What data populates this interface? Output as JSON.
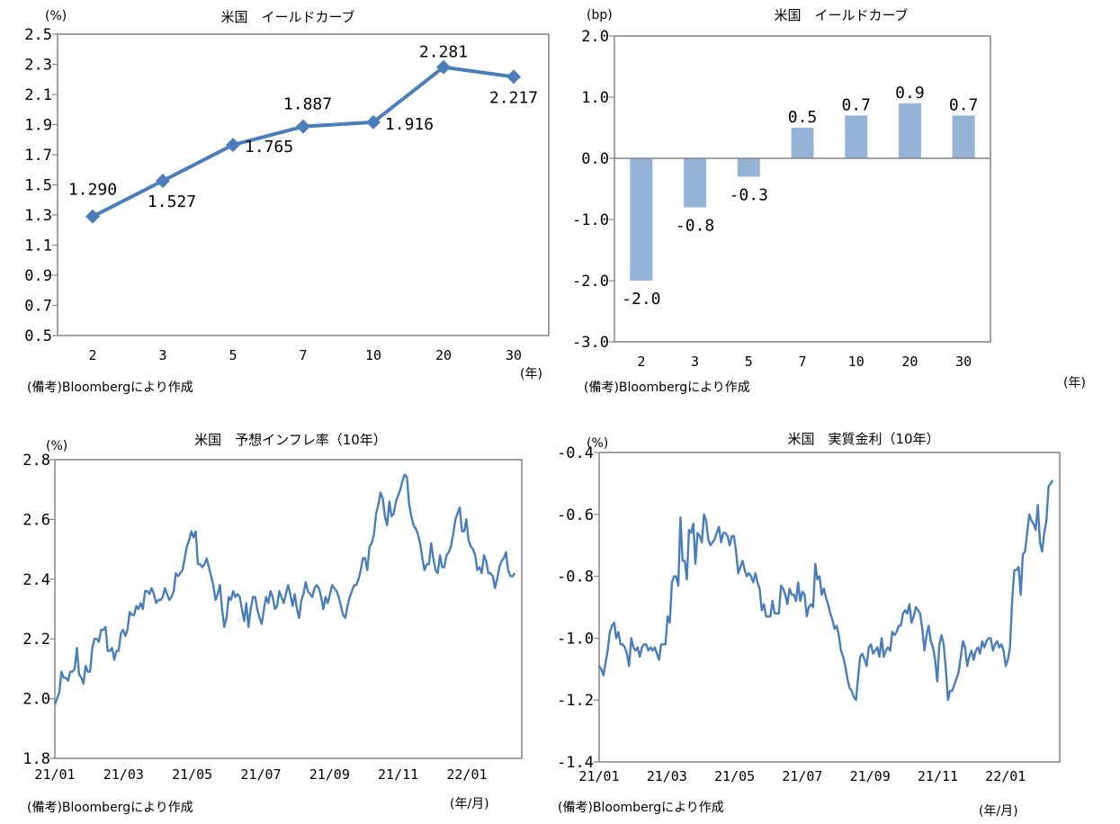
{
  "colors": {
    "line": "#4a7ebb",
    "bar": "#95b3d7",
    "axis": "#868686",
    "frame": "#404040"
  },
  "source_note": "(備考)Bloombergにより作成",
  "chart_data": [
    {
      "id": "yield-curve",
      "type": "line",
      "title": "米国　イールドカーブ",
      "ylabel": "(%)",
      "xlabel": "(年)",
      "categories": [
        "2",
        "3",
        "5",
        "7",
        "10",
        "20",
        "30"
      ],
      "values": [
        1.29,
        1.527,
        1.765,
        1.887,
        1.916,
        2.281,
        2.217
      ],
      "data_labels": [
        "1.290",
        "1.527",
        "1.765",
        "1.887",
        "1.916",
        "2.281",
        "2.217"
      ],
      "ylim": [
        0.5,
        2.5
      ],
      "yticks": [
        "2.5",
        "2.3",
        "2.1",
        "1.9",
        "1.7",
        "1.5",
        "1.3",
        "1.1",
        "0.9",
        "0.7",
        "0.5"
      ],
      "marker": "diamond",
      "grid": false
    },
    {
      "id": "yield-change",
      "type": "bar",
      "title": "米国　イールドカーブ",
      "ylabel": "(bp)",
      "xlabel": "(年)",
      "categories": [
        "2",
        "3",
        "5",
        "7",
        "10",
        "20",
        "30"
      ],
      "values": [
        -2.0,
        -0.8,
        -0.3,
        0.5,
        0.7,
        0.9,
        0.7
      ],
      "data_labels": [
        "-2.0",
        "-0.8",
        "-0.3",
        "0.5",
        "0.7",
        "0.9",
        "0.7"
      ],
      "ylim": [
        -3.0,
        2.0
      ],
      "yticks": [
        "2.0",
        "1.0",
        "0.0",
        "-1.0",
        "-2.0",
        "-3.0"
      ],
      "grid": false
    },
    {
      "id": "breakeven-inflation",
      "type": "line",
      "title": "米国　予想インフレ率（10年）",
      "ylabel": "(%)",
      "xlabel": "(年/月)",
      "x_range": [
        "21/01",
        "22/02"
      ],
      "xticks": [
        "21/01",
        "21/03",
        "21/05",
        "21/07",
        "21/09",
        "21/11",
        "22/01"
      ],
      "ylim": [
        1.8,
        2.8
      ],
      "yticks": [
        "2.8",
        "2.6",
        "2.4",
        "2.2",
        "2.0",
        "1.8"
      ],
      "grid": false,
      "values": [
        1.98,
        2.0,
        2.02,
        2.09,
        2.07,
        2.07,
        2.06,
        2.09,
        2.09,
        2.1,
        2.17,
        2.08,
        2.07,
        2.05,
        2.11,
        2.09,
        2.09,
        2.17,
        2.2,
        2.2,
        2.19,
        2.23,
        2.23,
        2.24,
        2.16,
        2.16,
        2.17,
        2.13,
        2.16,
        2.16,
        2.22,
        2.23,
        2.21,
        2.23,
        2.29,
        2.28,
        2.28,
        2.31,
        2.3,
        2.32,
        2.3,
        2.36,
        2.36,
        2.35,
        2.37,
        2.35,
        2.32,
        2.33,
        2.33,
        2.34,
        2.37,
        2.35,
        2.33,
        2.34,
        2.36,
        2.42,
        2.41,
        2.42,
        2.43,
        2.47,
        2.51,
        2.53,
        2.56,
        2.54,
        2.56,
        2.45,
        2.45,
        2.44,
        2.45,
        2.47,
        2.44,
        2.41,
        2.38,
        2.33,
        2.35,
        2.38,
        2.3,
        2.24,
        2.27,
        2.34,
        2.33,
        2.36,
        2.34,
        2.35,
        2.34,
        2.3,
        2.26,
        2.32,
        2.24,
        2.3,
        2.34,
        2.34,
        2.3,
        2.27,
        2.25,
        2.3,
        2.34,
        2.32,
        2.36,
        2.34,
        2.3,
        2.31,
        2.36,
        2.34,
        2.32,
        2.35,
        2.38,
        2.35,
        2.31,
        2.35,
        2.3,
        2.27,
        2.33,
        2.35,
        2.39,
        2.36,
        2.35,
        2.34,
        2.37,
        2.38,
        2.37,
        2.34,
        2.3,
        2.34,
        2.32,
        2.35,
        2.38,
        2.37,
        2.36,
        2.34,
        2.31,
        2.28,
        2.27,
        2.31,
        2.34,
        2.36,
        2.38,
        2.38,
        2.4,
        2.43,
        2.47,
        2.47,
        2.43,
        2.51,
        2.52,
        2.55,
        2.62,
        2.65,
        2.69,
        2.67,
        2.61,
        2.58,
        2.66,
        2.61,
        2.62,
        2.66,
        2.68,
        2.7,
        2.73,
        2.75,
        2.74,
        2.65,
        2.61,
        2.58,
        2.57,
        2.55,
        2.52,
        2.47,
        2.43,
        2.45,
        2.45,
        2.52,
        2.47,
        2.43,
        2.42,
        2.48,
        2.44,
        2.44,
        2.48,
        2.49,
        2.51,
        2.55,
        2.6,
        2.62,
        2.64,
        2.56,
        2.56,
        2.6,
        2.53,
        2.51,
        2.5,
        2.48,
        2.43,
        2.44,
        2.42,
        2.48,
        2.46,
        2.42,
        2.42,
        2.41,
        2.37,
        2.4,
        2.44,
        2.46,
        2.47,
        2.49,
        2.43,
        2.41,
        2.41,
        2.42
      ]
    },
    {
      "id": "real-rate",
      "type": "line",
      "title": "米国　実質金利（10年）",
      "ylabel": "(%)",
      "xlabel": "(年/月)",
      "x_range": [
        "21/01",
        "22/02"
      ],
      "xticks": [
        "21/01",
        "21/03",
        "21/05",
        "21/07",
        "21/09",
        "21/11",
        "22/01"
      ],
      "ylim": [
        -1.4,
        -0.4
      ],
      "yticks": [
        "-0.4",
        "-0.6",
        "-0.8",
        "-1.0",
        "-1.2",
        "-1.4"
      ],
      "grid": false,
      "values": [
        -1.09,
        -1.1,
        -1.12,
        -1.08,
        -1.04,
        -0.98,
        -0.96,
        -0.95,
        -1.0,
        -0.98,
        -1.02,
        -1.02,
        -1.03,
        -1.05,
        -1.09,
        -1.0,
        -1.03,
        -1.04,
        -1.03,
        -1.06,
        -1.03,
        -1.02,
        -1.02,
        -1.04,
        -1.03,
        -1.04,
        -1.03,
        -1.05,
        -1.07,
        -1.02,
        -1.02,
        -1.02,
        -0.93,
        -0.95,
        -0.82,
        -0.8,
        -0.8,
        -0.83,
        -0.61,
        -0.75,
        -0.75,
        -0.81,
        -0.65,
        -0.66,
        -0.63,
        -0.76,
        -0.66,
        -0.67,
        -0.69,
        -0.6,
        -0.62,
        -0.68,
        -0.7,
        -0.69,
        -0.68,
        -0.66,
        -0.64,
        -0.69,
        -0.66,
        -0.66,
        -0.67,
        -0.7,
        -0.67,
        -0.67,
        -0.72,
        -0.79,
        -0.77,
        -0.75,
        -0.78,
        -0.8,
        -0.79,
        -0.8,
        -0.82,
        -0.79,
        -0.82,
        -0.84,
        -0.91,
        -0.89,
        -0.93,
        -0.93,
        -0.93,
        -0.88,
        -0.92,
        -0.92,
        -0.92,
        -0.83,
        -0.84,
        -0.86,
        -0.89,
        -0.84,
        -0.86,
        -0.86,
        -0.88,
        -0.82,
        -0.88,
        -0.85,
        -0.86,
        -0.93,
        -0.9,
        -0.89,
        -0.9,
        -0.76,
        -0.81,
        -0.8,
        -0.86,
        -0.84,
        -0.87,
        -0.89,
        -0.92,
        -0.94,
        -0.97,
        -0.96,
        -0.99,
        -1.04,
        -1.06,
        -1.09,
        -1.13,
        -1.16,
        -1.17,
        -1.19,
        -1.2,
        -1.13,
        -1.06,
        -1.05,
        -1.07,
        -1.09,
        -1.03,
        -1.02,
        -1.05,
        -1.04,
        -1.03,
        -1.06,
        -1.0,
        -1.06,
        -1.04,
        -1.03,
        -1.04,
        -0.98,
        -0.99,
        -0.98,
        -0.96,
        -0.96,
        -0.92,
        -0.91,
        -0.92,
        -0.89,
        -0.95,
        -0.93,
        -0.9,
        -0.91,
        -0.92,
        -0.97,
        -1.04,
        -0.99,
        -0.96,
        -1.01,
        -1.03,
        -1.07,
        -1.14,
        -1.02,
        -0.99,
        -1.02,
        -1.1,
        -1.2,
        -1.17,
        -1.17,
        -1.15,
        -1.13,
        -1.11,
        -1.06,
        -1.01,
        -1.03,
        -1.09,
        -1.06,
        -1.04,
        -1.07,
        -1.04,
        -1.03,
        -1.05,
        -1.01,
        -1.03,
        -1.01,
        -1.0,
        -1.0,
        -1.04,
        -1.02,
        -1.01,
        -1.03,
        -1.02,
        -1.04,
        -1.09,
        -1.07,
        -1.03,
        -0.88,
        -0.78,
        -0.78,
        -0.77,
        -0.86,
        -0.73,
        -0.72,
        -0.66,
        -0.6,
        -0.62,
        -0.63,
        -0.65,
        -0.57,
        -0.69,
        -0.72,
        -0.66,
        -0.62,
        -0.51,
        -0.5,
        -0.49
      ]
    }
  ]
}
